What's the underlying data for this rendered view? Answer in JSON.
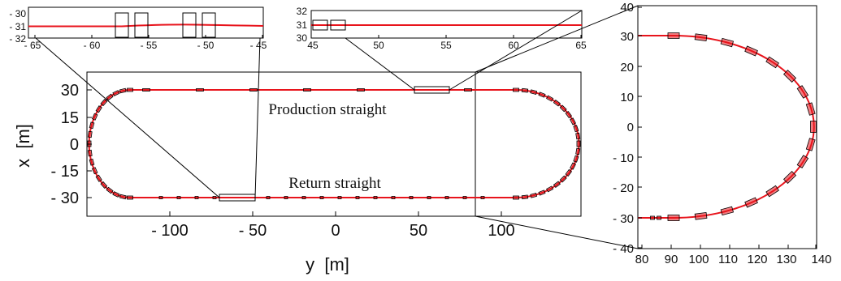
{
  "main": {
    "xlabel": "y  [m]",
    "ylabel": "x  [m]",
    "x_ticks": [
      "- 100",
      "- 50",
      "0",
      "50",
      "100"
    ],
    "y_ticks": [
      "30",
      "15",
      "0",
      "- 15",
      "- 30"
    ],
    "labels": {
      "production": "Production straight",
      "return": "Return straight"
    }
  },
  "inset_left": {
    "x_ticks": [
      "- 65",
      "- 60",
      "- 55",
      "- 50",
      "- 45"
    ],
    "y_ticks": [
      "- 30",
      "- 31",
      "- 32"
    ]
  },
  "inset_mid": {
    "x_ticks": [
      "45",
      "50",
      "55",
      "60",
      "65"
    ],
    "y_ticks": [
      "32",
      "31",
      "30"
    ]
  },
  "inset_right": {
    "x_ticks": [
      "80",
      "90",
      "100",
      "110",
      "120",
      "130",
      "140"
    ],
    "y_ticks": [
      "40",
      "30",
      "20",
      "10",
      "0",
      "- 10",
      "- 20",
      "- 30",
      "- 40"
    ]
  },
  "colors": {
    "beam": "#e8141c",
    "frame": "#000000"
  }
}
